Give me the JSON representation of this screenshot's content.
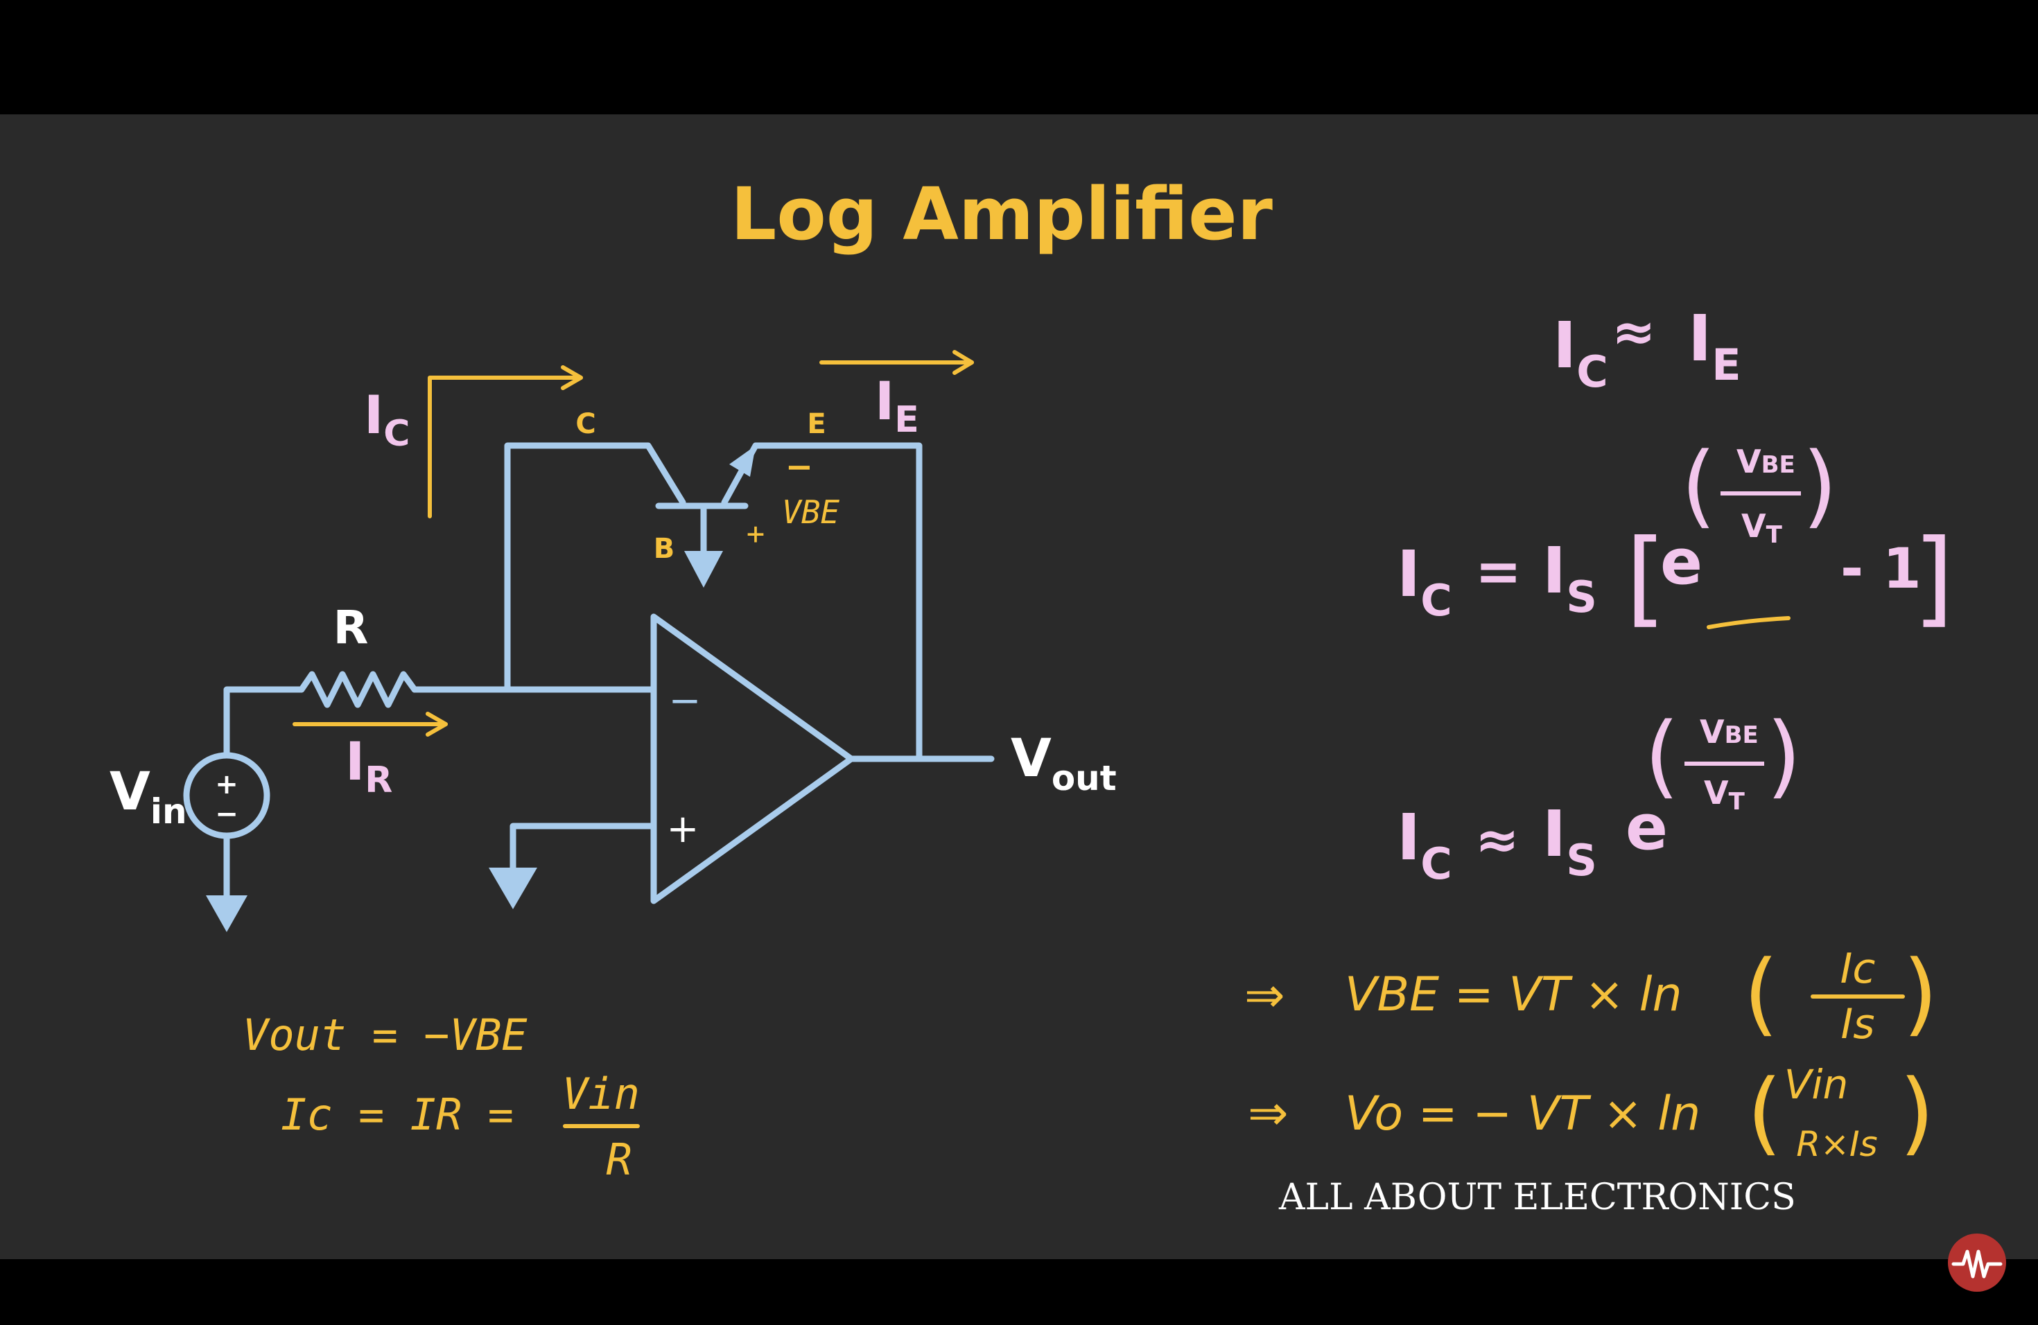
{
  "title": "Log Amplifier",
  "colors": {
    "background": "#000000",
    "board": "#2a2a2a",
    "title": "#f5c03c",
    "wire": "#a9ccec",
    "pink": "#f2c6ec",
    "yellow": "#f5c03c",
    "white": "#ffffff",
    "logo_bg": "#b5322f"
  },
  "circuit": {
    "ic_main": "I",
    "ic_sub": "C",
    "ie_main": "I",
    "ie_sub": "E",
    "ir_main": "I",
    "ir_sub": "R",
    "collector": "C",
    "emitter": "E",
    "base": "B",
    "vbe": "VBE",
    "vbe_minus": "−",
    "vbe_plus": "+",
    "resistor": "R",
    "vin_main": "V",
    "vin_sub": "in",
    "vout_main": "V",
    "vout_sub": "out",
    "src_plus": "+",
    "src_minus": "−",
    "opamp_minus": "−",
    "opamp_plus": "+"
  },
  "notes_left": {
    "line1": "Vout = −VBE",
    "line2_lhs": "Ic = IR =",
    "line2_num": "Vin",
    "line2_den": "R"
  },
  "equations": {
    "eq1": {
      "a_main": "I",
      "a_sub": "C",
      "op": "≈",
      "b_main": "I",
      "b_sub": "E"
    },
    "eq2": {
      "a_main": "I",
      "a_sub": "C",
      "op": "=",
      "b_main": "I",
      "b_sub": "S",
      "exp_base": "e",
      "exp_num": "V",
      "exp_num_sub": "BE",
      "exp_den": "V",
      "exp_den_sub": "T",
      "tail": "- 1"
    },
    "eq3": {
      "a_main": "I",
      "a_sub": "C",
      "op": "≈",
      "b_main": "I",
      "b_sub": "S",
      "exp_base": "e",
      "exp_num": "V",
      "exp_num_sub": "BE",
      "exp_den": "V",
      "exp_den_sub": "T"
    },
    "eq4": {
      "arrow": "⇒",
      "lhs": "VBE = VT × ln",
      "num": "Ic",
      "den": "Is"
    },
    "eq5": {
      "arrow": "⇒",
      "lhs": "Vo = − VT × ln",
      "num": "Vin",
      "den": "R×Is"
    }
  },
  "brand": "ALL ABOUT ELECTRONICS",
  "logo_icon": "waveform-icon"
}
